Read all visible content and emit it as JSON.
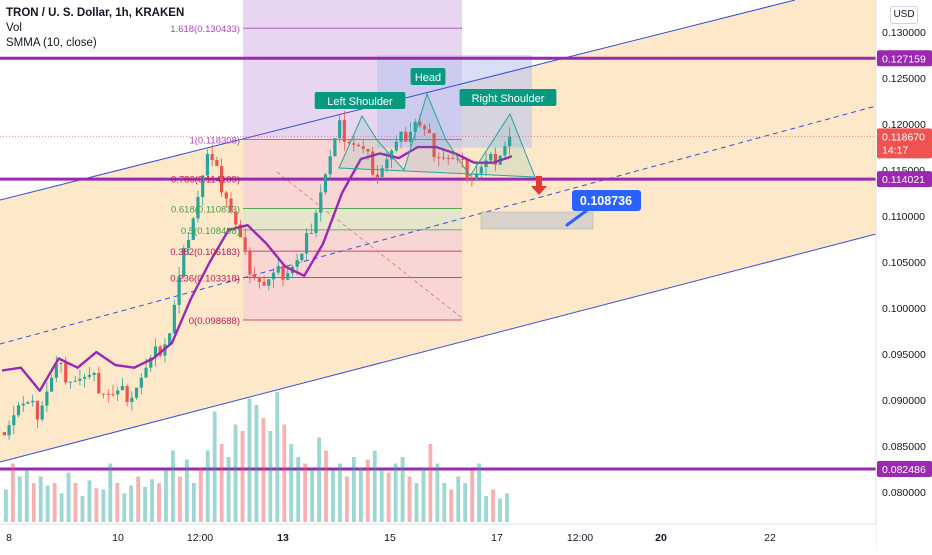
{
  "chart_data": {
    "type": "candlestick",
    "title": "TRON / U. S. Dollar, 1h, KRAKEN",
    "indicators": [
      "Vol",
      "SMMA (10, close)"
    ],
    "currency": "USD",
    "y_axis": {
      "scale": "linear",
      "range": [
        0.0765,
        0.1335
      ],
      "ticks": [
        "0.130000",
        "0.125000",
        "0.120000",
        "0.115000",
        "0.110000",
        "0.105000",
        "0.100000",
        "0.095000",
        "0.090000",
        "0.085000",
        "0.080000"
      ]
    },
    "x_axis": {
      "ticks": [
        {
          "label": "8",
          "bold": false
        },
        {
          "label": "10",
          "bold": false
        },
        {
          "label": "12:00",
          "bold": false
        },
        {
          "label": "13",
          "bold": true
        },
        {
          "label": "15",
          "bold": false
        },
        {
          "label": "17",
          "bold": false
        },
        {
          "label": "12:00",
          "bold": false
        },
        {
          "label": "20",
          "bold": true
        },
        {
          "label": "22",
          "bold": false
        }
      ]
    },
    "price_labels": {
      "resistance": "0.127159",
      "current": "0.118670",
      "countdown": "14:17",
      "neckline": "0.114021",
      "support": "0.082486"
    },
    "horizontal_levels": [
      0.127159,
      0.114021,
      0.082486
    ],
    "target": {
      "label": "0.108736",
      "value": 0.108736
    },
    "fibonacci": [
      {
        "label": "1.618(0.130433)",
        "value": 0.130433
      },
      {
        "label": "1(0.118308)",
        "value": 0.118308
      },
      {
        "label": "0.786(0.114109)",
        "value": 0.114109
      },
      {
        "label": "0.618(0.110813)",
        "value": 0.110813
      },
      {
        "label": "0.5(0.108498)",
        "value": 0.108498
      },
      {
        "label": "0.382(0.106183)",
        "value": 0.106183
      },
      {
        "label": "0.236(0.103318)",
        "value": 0.103318
      },
      {
        "label": "0(0.098688)",
        "value": 0.098688
      }
    ],
    "pattern_labels": {
      "left": "Left Shoulder",
      "head": "Head",
      "right": "Right Shoulder"
    },
    "price_path": [
      [
        0.0865,
        0.0932
      ],
      [
        0.0895,
        0.0935
      ],
      [
        0.0888,
        0.091
      ],
      [
        0.0935,
        0.0945
      ],
      [
        0.0925,
        0.0935
      ],
      [
        0.092,
        0.0952
      ],
      [
        0.0905,
        0.0938
      ],
      [
        0.091,
        0.0935
      ],
      [
        0.094,
        0.0945
      ],
      [
        0.0975,
        0.0962
      ],
      [
        0.1085,
        0.101
      ],
      [
        0.1165,
        0.105
      ],
      [
        0.1125,
        0.1085
      ],
      [
        0.1055,
        0.109
      ],
      [
        0.1025,
        0.107
      ],
      [
        0.104,
        0.1045
      ],
      [
        0.1055,
        0.1035
      ],
      [
        0.113,
        0.107
      ],
      [
        0.1195,
        0.1125
      ],
      [
        0.1175,
        0.1162
      ],
      [
        0.115,
        0.1168
      ],
      [
        0.1175,
        0.1163
      ],
      [
        0.1205,
        0.1175
      ],
      [
        0.1175,
        0.1175
      ],
      [
        0.116,
        0.1168
      ],
      [
        0.1145,
        0.1158
      ],
      [
        0.116,
        0.1158
      ],
      [
        0.1187,
        0.1165
      ]
    ],
    "volume": [
      0.25,
      0.45,
      0.35,
      0.4,
      0.3,
      0.35,
      0.28,
      0.3,
      0.22,
      0.38,
      0.3,
      0.2,
      0.32,
      0.26,
      0.25,
      0.45,
      0.3,
      0.22,
      0.28,
      0.35,
      0.27,
      0.33,
      0.3,
      0.4,
      0.55,
      0.35,
      0.48,
      0.3,
      0.42,
      0.55,
      0.85,
      0.6,
      0.5,
      0.75,
      0.7,
      0.95,
      0.9,
      0.8,
      0.7,
      1.0,
      0.75,
      0.6,
      0.5,
      0.45,
      0.4,
      0.65,
      0.55,
      0.4,
      0.45,
      0.35,
      0.5,
      0.42,
      0.48,
      0.55,
      0.4,
      0.38,
      0.45,
      0.5,
      0.35,
      0.3,
      0.42,
      0.6,
      0.45,
      0.3,
      0.25,
      0.35,
      0.3,
      0.4,
      0.45,
      0.2,
      0.25,
      0.18,
      0.22
    ],
    "colors": {
      "up": "#26a69a",
      "down": "#ef5350",
      "smma": "#9c27b0",
      "level": "#9c27b0",
      "channel": "#3b4fd6",
      "channel_fill": "#fde4bf",
      "fib_upper_fill": "#e8d6f0",
      "fib_lower_fill": "#f6d4d4",
      "pattern_label": "#089981",
      "target": "#2962ff"
    }
  }
}
